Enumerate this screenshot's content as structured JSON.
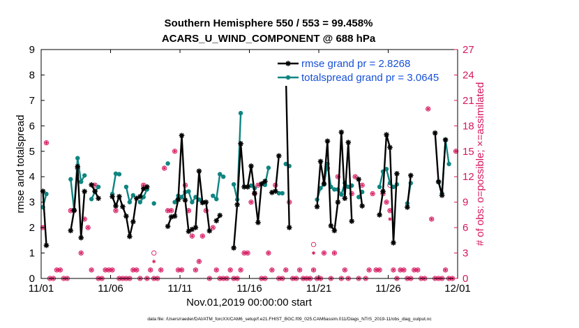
{
  "chart_data": {
    "type": "line",
    "title_line1": "Southern Hemisphere 550 / 553 = 99.458%",
    "title_line2": "ACARS_U_WIND_COMPONENT @ 688 hPa",
    "xlabel": "Nov.01,2019 00:00:00 start",
    "ylabel": "rmse and totalspread",
    "y2label": "# of obs: o=possible; ×=assimilated",
    "footnote": "data file: /Users/raeder/DAI/ATM_forcXX/CAM6_setup/f.e21.FHIST_BGC.f09_025.CAM6assim.011/Diags_NTrS_2019-11/obs_diag_output.nc",
    "xlim": [
      0,
      30
    ],
    "ylim": [
      0,
      9
    ],
    "y2lim": [
      0,
      27
    ],
    "xticks": [
      0,
      5,
      10,
      15,
      20,
      25,
      30
    ],
    "xtick_labels": [
      "11/01",
      "11/06",
      "11/11",
      "11/16",
      "11/21",
      "11/26",
      "12/01"
    ],
    "yticks": [
      0,
      1,
      2,
      3,
      4,
      5,
      6,
      7,
      8,
      9
    ],
    "ytick_labels": [
      "0",
      "1",
      "2",
      "3",
      "4",
      "5",
      "6",
      "7",
      "8",
      "9"
    ],
    "y2ticks": [
      0,
      3,
      6,
      9,
      12,
      15,
      18,
      21,
      24,
      27
    ],
    "y2tick_labels": [
      "0",
      "3",
      "6",
      "9",
      "12",
      "15",
      "18",
      "21",
      "24",
      "27"
    ],
    "series": [
      {
        "name": "rmse grand pr = 2.8268",
        "color": "#000000",
        "marker": "star",
        "segments": [
          [
            [
              0.125,
              3.43
            ],
            [
              0.375,
              1.3
            ]
          ],
          [
            [
              2.125,
              1.88
            ],
            [
              2.375,
              2.68
            ],
            [
              2.625,
              4.4
            ],
            [
              2.875,
              1.6
            ],
            [
              3.125,
              3.42
            ]
          ],
          [
            [
              3.625,
              3.68
            ],
            [
              3.875,
              3.43
            ],
            [
              4.125,
              3.15
            ]
          ],
          [
            [
              5.125,
              3.22
            ],
            [
              5.375,
              2.85
            ],
            [
              5.625,
              3.22
            ],
            [
              5.875,
              2.82
            ],
            [
              6.125,
              2.45
            ],
            [
              6.375,
              1.65
            ],
            [
              6.625,
              2.23
            ],
            [
              6.875,
              3.15
            ],
            [
              7.125,
              3.22
            ],
            [
              7.375,
              3.53
            ],
            [
              7.625,
              3.6
            ]
          ],
          [
            [
              9.125,
              2.05
            ],
            [
              9.375,
              2.42
            ],
            [
              9.625,
              2.45
            ],
            [
              9.875,
              3.1
            ],
            [
              10.125,
              5.62
            ],
            [
              10.375,
              3.08
            ],
            [
              10.625,
              1.85
            ],
            [
              10.875,
              1.93
            ],
            [
              11.125,
              2.0
            ],
            [
              11.375,
              4.22
            ],
            [
              11.625,
              2.98
            ],
            [
              11.875,
              3.0
            ],
            [
              12.125,
              1.87
            ]
          ],
          [
            [
              12.625,
              2.27
            ],
            [
              12.875,
              2.48
            ]
          ],
          [
            [
              13.875,
              1.2
            ],
            [
              14.125,
              2.9
            ],
            [
              14.375,
              5.3
            ],
            [
              14.625,
              3.6
            ],
            [
              14.875,
              3.6
            ],
            [
              15.125,
              4.42
            ],
            [
              15.375,
              3.35
            ],
            [
              15.625,
              2.2
            ],
            [
              15.875,
              3.72
            ],
            [
              16.125,
              3.82
            ]
          ],
          [
            [
              16.625,
              3.38
            ],
            [
              16.875,
              3.43
            ],
            [
              17.125,
              4.82
            ]
          ],
          [
            [
              17.625,
              8.18
            ],
            [
              17.875,
              2.0
            ]
          ],
          [
            [
              19.875,
              2.82
            ],
            [
              20.125,
              4.6
            ],
            [
              20.375,
              3.72
            ],
            [
              20.625,
              5.4
            ],
            [
              20.875,
              2.07
            ],
            [
              21.125,
              1.88
            ],
            [
              21.375,
              3.0
            ],
            [
              21.625,
              5.75
            ],
            [
              21.875,
              3.15
            ],
            [
              22.125,
              5.35
            ],
            [
              22.375,
              2.25
            ]
          ],
          [
            [
              22.875,
              3.9
            ],
            [
              23.125,
              2.85
            ]
          ],
          [
            [
              24.375,
              2.5
            ],
            [
              24.625,
              3.42
            ],
            [
              24.875,
              5.65
            ],
            [
              25.125,
              5.15
            ],
            [
              25.375,
              1.4
            ],
            [
              25.625,
              4.12
            ]
          ],
          [
            [
              26.375,
              2.8
            ],
            [
              26.625,
              4.05
            ]
          ],
          [
            [
              28.375,
              5.72
            ],
            [
              28.625,
              3.8
            ],
            [
              28.875,
              3.27
            ],
            [
              29.125,
              5.45
            ]
          ]
        ]
      },
      {
        "name": "totalspread grand pr = 3.0645",
        "color": "#0e8580",
        "marker": "dot",
        "segments": [
          [
            [
              0.125,
              2.8
            ],
            [
              0.375,
              3.32
            ]
          ],
          [
            [
              2.125,
              3.9
            ],
            [
              2.375,
              2.68
            ],
            [
              2.625,
              4.73
            ],
            [
              2.875,
              3.8
            ],
            [
              3.125,
              4.05
            ]
          ],
          [
            [
              3.625,
              3.12
            ],
            [
              3.875,
              3.4
            ],
            [
              4.125,
              3.6
            ]
          ],
          [
            [
              5.125,
              3.32
            ],
            [
              5.375,
              4.12
            ],
            [
              5.625,
              4.1
            ]
          ],
          [
            [
              6.125,
              3.6
            ],
            [
              6.375,
              3.0
            ],
            [
              6.625,
              3.27
            ]
          ],
          [
            [
              7.125,
              3.0
            ],
            [
              7.375,
              3.2
            ],
            [
              7.625,
              3.5
            ]
          ],
          [
            [
              8.125,
              2.95
            ]
          ],
          [
            [
              9.125,
              4.52
            ]
          ],
          [
            [
              9.625,
              3.0
            ],
            [
              9.875,
              3.25
            ],
            [
              10.125,
              3.2
            ],
            [
              10.375,
              3.4
            ],
            [
              10.625,
              3.42
            ],
            [
              10.875,
              3.0
            ],
            [
              11.125,
              3.2
            ]
          ],
          [
            [
              11.375,
              3.1
            ],
            [
              11.625,
              3.0
            ]
          ],
          [
            [
              12.375,
              3.25
            ],
            [
              12.625,
              3.12
            ],
            [
              12.875,
              4.1
            ],
            [
              13.125,
              4.0
            ]
          ],
          [
            [
              13.875,
              3.7
            ],
            [
              14.125,
              3.1
            ],
            [
              14.375,
              6.5
            ]
          ],
          [
            [
              15.125,
              3.65
            ],
            [
              15.375,
              3.55
            ]
          ],
          [
            [
              16.125,
              3.68
            ],
            [
              16.375,
              4.35
            ]
          ],
          [
            [
              17.125,
              3.35
            ],
            [
              17.375,
              3.35
            ]
          ],
          [
            [
              17.625,
              4.5
            ],
            [
              17.875,
              4.42
            ]
          ],
          [
            [
              19.875,
              3.1
            ],
            [
              20.125,
              3.55
            ],
            [
              20.375,
              3.7
            ],
            [
              20.625,
              4.5
            ],
            [
              20.875,
              3.6
            ],
            [
              21.125,
              3.5
            ],
            [
              21.375,
              3.5
            ],
            [
              21.625,
              3.3
            ],
            [
              21.875,
              3.75
            ],
            [
              22.125,
              3.6
            ],
            [
              22.375,
              3.65
            ]
          ],
          [
            [
              22.875,
              3.2
            ],
            [
              23.125,
              3.4
            ]
          ],
          [
            [
              24.375,
              3.6
            ],
            [
              24.625,
              4.2
            ],
            [
              24.875,
              4.3
            ],
            [
              25.125,
              3.75
            ],
            [
              25.375,
              3.6
            ],
            [
              25.625,
              3.7
            ]
          ],
          [
            [
              26.375,
              2.95
            ],
            [
              26.625,
              3.75
            ]
          ],
          [
            [
              28.625,
              3.8
            ],
            [
              28.875,
              3.35
            ],
            [
              29.125,
              5.45
            ],
            [
              29.375,
              4.5
            ]
          ]
        ]
      }
    ],
    "obs_counts": {
      "name": "# of obs (right axis)",
      "color": "#d6175f",
      "possible_and_assimilated": [
        [
          0.125,
          6
        ],
        [
          0.375,
          16
        ],
        [
          0.625,
          0
        ],
        [
          0.875,
          0
        ],
        [
          1.125,
          1
        ],
        [
          1.375,
          1
        ],
        [
          1.625,
          0
        ],
        [
          1.875,
          0
        ],
        [
          2.125,
          8
        ],
        [
          2.375,
          8
        ],
        [
          2.625,
          13
        ],
        [
          2.875,
          3
        ],
        [
          3.125,
          7
        ],
        [
          3.375,
          6
        ],
        [
          3.625,
          1
        ],
        [
          3.875,
          11
        ],
        [
          4.125,
          0
        ],
        [
          4.375,
          0
        ],
        [
          4.625,
          1
        ],
        [
          4.875,
          1
        ],
        [
          5.125,
          1
        ],
        [
          5.375,
          8
        ],
        [
          5.625,
          0
        ],
        [
          5.875,
          0
        ],
        [
          6.125,
          0
        ],
        [
          6.375,
          0
        ],
        [
          6.625,
          1
        ],
        [
          6.875,
          1
        ],
        [
          7.125,
          0
        ],
        [
          7.375,
          11
        ],
        [
          7.625,
          0
        ],
        [
          7.875,
          1
        ],
        [
          8.125,
          0
        ],
        [
          8.375,
          0
        ],
        [
          8.625,
          1
        ],
        [
          8.875,
          13
        ],
        [
          9.125,
          8
        ],
        [
          9.375,
          8
        ],
        [
          9.625,
          15
        ],
        [
          9.875,
          1
        ],
        [
          10.125,
          1
        ],
        [
          10.375,
          11
        ],
        [
          10.625,
          8
        ],
        [
          10.875,
          5
        ],
        [
          11.125,
          1
        ],
        [
          11.375,
          2
        ],
        [
          11.625,
          5
        ],
        [
          11.875,
          8
        ],
        [
          12.125,
          0
        ],
        [
          12.375,
          6
        ],
        [
          12.625,
          1
        ],
        [
          12.875,
          0
        ],
        [
          13.125,
          0
        ],
        [
          13.375,
          0
        ],
        [
          13.625,
          1
        ],
        [
          13.875,
          0
        ],
        [
          14.125,
          0
        ],
        [
          14.375,
          1
        ],
        [
          14.625,
          3
        ],
        [
          14.875,
          3
        ],
        [
          15.125,
          9
        ],
        [
          15.375,
          10
        ],
        [
          15.625,
          11
        ],
        [
          15.875,
          0
        ],
        [
          16.125,
          0
        ],
        [
          16.375,
          3
        ],
        [
          16.625,
          1
        ],
        [
          16.875,
          11
        ],
        [
          17.125,
          0
        ],
        [
          17.375,
          0
        ],
        [
          17.625,
          1
        ],
        [
          17.875,
          9
        ],
        [
          18.125,
          0
        ],
        [
          18.375,
          0
        ],
        [
          18.625,
          1
        ],
        [
          18.875,
          0
        ],
        [
          19.125,
          0
        ],
        [
          19.375,
          0
        ],
        [
          19.625,
          1
        ],
        [
          19.875,
          0
        ],
        [
          20.125,
          0
        ],
        [
          20.375,
          3
        ],
        [
          20.625,
          13
        ],
        [
          20.875,
          0
        ],
        [
          21.125,
          3
        ],
        [
          21.375,
          12
        ],
        [
          21.625,
          0
        ],
        [
          21.875,
          1
        ],
        [
          22.125,
          0
        ],
        [
          22.375,
          10
        ],
        [
          22.625,
          12
        ],
        [
          22.875,
          0
        ],
        [
          23.125,
          11
        ],
        [
          23.375,
          0
        ],
        [
          23.625,
          1
        ],
        [
          23.875,
          10
        ],
        [
          24.125,
          1
        ],
        [
          24.375,
          1
        ],
        [
          24.625,
          10
        ],
        [
          24.875,
          9
        ],
        [
          25.125,
          8
        ],
        [
          25.375,
          1
        ],
        [
          25.625,
          0
        ],
        [
          25.875,
          1
        ],
        [
          26.125,
          1
        ],
        [
          26.375,
          0
        ],
        [
          26.625,
          0
        ],
        [
          26.875,
          1
        ],
        [
          27.125,
          1
        ],
        [
          27.375,
          0
        ],
        [
          27.625,
          0
        ],
        [
          27.875,
          20
        ],
        [
          28.125,
          7
        ],
        [
          28.375,
          0
        ],
        [
          28.625,
          0
        ],
        [
          28.875,
          0
        ],
        [
          29.125,
          1
        ],
        [
          29.375,
          0
        ],
        [
          29.625,
          0
        ],
        [
          29.875,
          15
        ]
      ],
      "possible_only": [
        [
          8.125,
          3
        ],
        [
          19.625,
          4
        ],
        [
          25.125,
          11
        ]
      ],
      "assimilated_only": [
        [
          8.125,
          2
        ],
        [
          19.625,
          3
        ],
        [
          25.125,
          7
        ]
      ]
    },
    "legend_position": "top-right",
    "grid": false
  }
}
